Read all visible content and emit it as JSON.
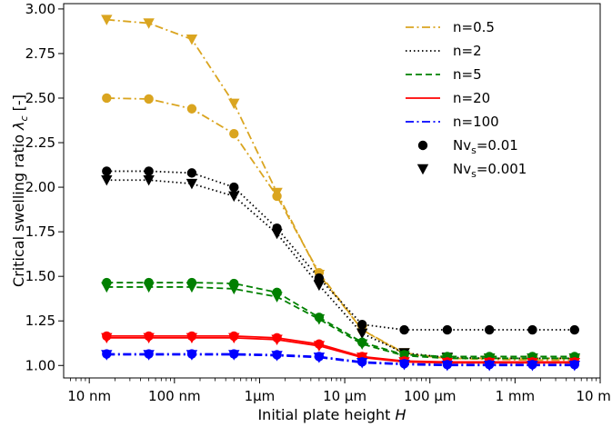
{
  "chart_data": {
    "type": "line",
    "xlabel": "Initial plate height H",
    "ylabel": "Critical swelling ratio λc [-]",
    "x_scale": "log",
    "x_unit": "m",
    "xlim": [
      5e-09,
      0.01
    ],
    "ylim": [
      0.93,
      3.03
    ],
    "grid": false,
    "legend_position": "top-right",
    "x_ticks": [
      {
        "value": 1e-08,
        "label": "10 nm"
      },
      {
        "value": 1e-07,
        "label": "100 nm"
      },
      {
        "value": 1e-06,
        "label": "1μm"
      },
      {
        "value": 1e-05,
        "label": "10 μm"
      },
      {
        "value": 0.0001,
        "label": "100 μm"
      },
      {
        "value": 0.001,
        "label": "1 mm"
      },
      {
        "value": 0.01,
        "label": "10 mm"
      }
    ],
    "y_ticks": [
      "1.00",
      "1.25",
      "1.50",
      "1.75",
      "2.00",
      "2.25",
      "2.50",
      "2.75",
      "3.00"
    ],
    "x": [
      1.6e-08,
      5e-08,
      1.6e-07,
      5e-07,
      1.6e-06,
      5e-06,
      1.6e-05,
      5e-05,
      0.00016,
      0.0005,
      0.0016,
      0.005
    ],
    "series": [
      {
        "name": "n=0.5",
        "color": "#DAA520",
        "dash": "dashdot",
        "marker": "circle",
        "Nv": "0.01",
        "values": [
          2.5,
          2.495,
          2.44,
          2.3,
          1.95,
          1.52,
          1.2,
          1.065,
          1.04,
          1.04,
          1.04,
          1.04
        ]
      },
      {
        "name": "n=0.5",
        "color": "#DAA520",
        "dash": "dashdot",
        "marker": "triangle",
        "Nv": "0.001",
        "values": [
          2.94,
          2.92,
          2.83,
          2.47,
          1.97,
          1.51,
          1.2,
          1.07,
          1.04,
          1.035,
          1.03,
          1.03
        ]
      },
      {
        "name": "n=2",
        "color": "#000000",
        "dash": "dotted",
        "marker": "circle",
        "Nv": "0.01",
        "values": [
          2.09,
          2.09,
          2.08,
          2.0,
          1.77,
          1.49,
          1.23,
          1.2,
          1.2,
          1.2,
          1.2,
          1.2
        ]
      },
      {
        "name": "n=2",
        "color": "#000000",
        "dash": "dotted",
        "marker": "triangle",
        "Nv": "0.001",
        "values": [
          2.04,
          2.04,
          2.02,
          1.95,
          1.74,
          1.45,
          1.18,
          1.07,
          1.045,
          1.04,
          1.04,
          1.04
        ]
      },
      {
        "name": "n=5",
        "color": "#008000",
        "dash": "dashed",
        "marker": "circle",
        "Nv": "0.01",
        "values": [
          1.465,
          1.465,
          1.465,
          1.46,
          1.41,
          1.27,
          1.13,
          1.06,
          1.05,
          1.05,
          1.05,
          1.05
        ]
      },
      {
        "name": "n=5",
        "color": "#008000",
        "dash": "dashed",
        "marker": "triangle",
        "Nv": "0.001",
        "values": [
          1.44,
          1.44,
          1.44,
          1.43,
          1.385,
          1.26,
          1.12,
          1.055,
          1.04,
          1.04,
          1.04,
          1.04
        ]
      },
      {
        "name": "n=20",
        "color": "#FF0000",
        "dash": "solid",
        "marker": "circle",
        "Nv": "0.01",
        "values": [
          1.165,
          1.165,
          1.165,
          1.165,
          1.155,
          1.12,
          1.05,
          1.025,
          1.02,
          1.02,
          1.02,
          1.02
        ]
      },
      {
        "name": "n=20",
        "color": "#FF0000",
        "dash": "solid",
        "marker": "triangle",
        "Nv": "0.001",
        "values": [
          1.155,
          1.155,
          1.155,
          1.155,
          1.145,
          1.11,
          1.045,
          1.02,
          1.015,
          1.015,
          1.015,
          1.015
        ]
      },
      {
        "name": "n=100",
        "color": "#0000FF",
        "dash": "dashdot",
        "marker": "circle",
        "Nv": "0.01",
        "values": [
          1.065,
          1.065,
          1.065,
          1.065,
          1.06,
          1.05,
          1.02,
          1.01,
          1.005,
          1.005,
          1.005,
          1.005
        ]
      },
      {
        "name": "n=100",
        "color": "#0000FF",
        "dash": "dashdot",
        "marker": "triangle",
        "Nv": "0.001",
        "values": [
          1.06,
          1.06,
          1.06,
          1.06,
          1.055,
          1.045,
          1.015,
          1.005,
          1.0,
          1.0,
          1.0,
          1.0
        ]
      }
    ],
    "legend": [
      {
        "label": "n=0.5",
        "color": "#DAA520",
        "dash": "dashdot"
      },
      {
        "label": "n=2",
        "color": "#000000",
        "dash": "dotted"
      },
      {
        "label": "n=5",
        "color": "#008000",
        "dash": "dashed"
      },
      {
        "label": "n=20",
        "color": "#FF0000",
        "dash": "solid"
      },
      {
        "label": "n=100",
        "color": "#0000FF",
        "dash": "dashdot"
      },
      {
        "label_main": "Nv",
        "label_sub": "s",
        "label_rest": "=0.01",
        "marker": "circle",
        "color": "#000000"
      },
      {
        "label_main": "Nv",
        "label_sub": "s",
        "label_rest": "=0.001",
        "marker": "triangle",
        "color": "#000000"
      }
    ]
  }
}
